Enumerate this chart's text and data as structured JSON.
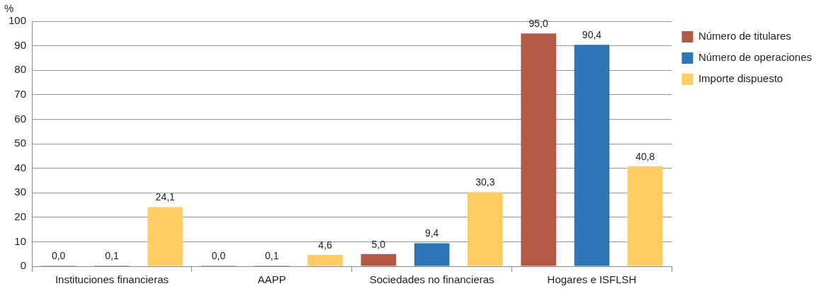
{
  "chart_data": {
    "type": "bar",
    "ylabel": "%",
    "categories": [
      "Instituciones financieras",
      "AAPP",
      "Sociedades no financieras",
      "Hogares e ISFLSH"
    ],
    "series": [
      {
        "name": "Número de titulares",
        "color": "#b35a47",
        "values": [
          0.0,
          0.0,
          5.0,
          95.0
        ],
        "value_labels": [
          "0,0",
          "0,0",
          "5,0",
          "95,0"
        ]
      },
      {
        "name": "Número de operaciones",
        "color": "#2e75b6",
        "values": [
          0.1,
          0.1,
          9.4,
          90.4
        ],
        "value_labels": [
          "0,1",
          "0,1",
          "9,4",
          "90,4"
        ]
      },
      {
        "name": "Importe dispuesto",
        "color": "#fdcc63",
        "values": [
          24.1,
          4.6,
          30.3,
          40.8
        ],
        "value_labels": [
          "24,1",
          "4,6",
          "30,3",
          "40,8"
        ]
      }
    ],
    "ylim": [
      0,
      100
    ],
    "yticks": [
      0,
      10,
      20,
      30,
      40,
      50,
      60,
      70,
      80,
      90,
      100
    ],
    "grid": "y",
    "legend": "top right"
  }
}
